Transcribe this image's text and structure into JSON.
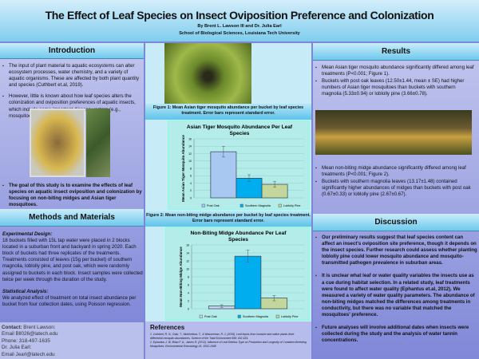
{
  "header": {
    "title": "The Effect of Leaf Species on Insect Oviposition Preference and Colonization",
    "authors": "By Brent L. Lawson III and Dr. Julia Earl",
    "affiliation": "School of Biological Sciences, Louisiana Tech University"
  },
  "introduction": {
    "heading": "Introduction",
    "bullets": [
      "The input of plant material to aquatic ecosystems can alter ecosystem processes, water chemistry, and a variety of aquatic organisms. These are affected by both plant quantity and species (Cuthbert et.al, 2019).",
      "However, little is known about how leaf species alters the colonization and oviposition preferences of aquatic insects, which include some important disease vectors (e.g., mosquitoes)."
    ],
    "goal": "The goal of this study is to examine the effects of leaf species on aquatic insect oviposition and colonization by focusing on non-biting midges and Asian tiger mosquitoes."
  },
  "methods": {
    "heading": "Methods and Materials",
    "design_label": "Experimental Design:",
    "design_text": "18 buckets filled with 15L tap water were placed in 2 blocks located in a suburban front and backyard in spring 2020. Each block of buckets had three replicates of the treatments. Treatments consisted of leaves (15g per bucket) of southern magnolia, loblolly pine, and post oak, which were randomly assigned to buckets in each block. Insect samples were collected twice per week through the duration of the study.",
    "stats_label": "Statistical Analysis:",
    "stats_text": "We analyzed effect of treatment on total insect abundance per bucket from four collection dates, using Poisson regression."
  },
  "contact": {
    "label": "Contact:",
    "lines": [
      "Brent Lawson:",
      "Email Bll026@latech.edu",
      "Phone: 318-497-1635",
      "Dr. Julia Earl:",
      "Email Jearl@latech.edu"
    ]
  },
  "figures": {
    "fig1_caption": "Figure 1: Mean Asian tiger mosquito abundance per bucket by leaf species treatment. Error bars represent standard error.",
    "fig2_caption": "Figure 2: Mean non-biting midge abundance per bucket by leaf species treatment. Error bars represent standard error."
  },
  "chart_data": [
    {
      "type": "bar",
      "title": "Asian Tiger Mosquito Abundance Per Leaf Species",
      "ylabel": "Mean Asian Tiger Mosquito Abundance",
      "xlabel": "",
      "categories": [
        "Post Oak",
        "Southern Magnolia",
        "Loblolly Pine"
      ],
      "values": [
        12.5,
        5.33,
        3.66
      ],
      "errors": [
        1.44,
        0.94,
        0.78
      ],
      "ylim": [
        0,
        16
      ],
      "yticks": [
        "0",
        "2",
        "4",
        "6",
        "8",
        "10",
        "12",
        "14",
        "16"
      ],
      "colors": [
        "#a8c8f2",
        "#00aeef",
        "#c3d69b"
      ],
      "grid": true,
      "legend": "bottom"
    },
    {
      "type": "bar",
      "title": "Non-Biting Midge Abundance Per Leaf Species",
      "ylabel": "Mean Non-Biting Midge Abundance",
      "xlabel": "",
      "categories": [
        "Post Oak",
        "Southern Magnolia",
        "Loblolly Pine"
      ],
      "values": [
        0.67,
        13.17,
        2.67
      ],
      "errors": [
        0.33,
        1.48,
        0.67
      ],
      "ylim": [
        0,
        16
      ],
      "yticks": [
        "0",
        "2",
        "4",
        "6",
        "8",
        "10",
        "12",
        "14",
        "16"
      ],
      "colors": [
        "#c8d3f2",
        "#00aeef",
        "#c3d69b"
      ],
      "grid": true,
      "legend": "bottom"
    }
  ],
  "references": {
    "heading": "References",
    "items": [
      "1. Cuthbert, R. N., Dalu, T., Mutshekwa, T., & Wasserman, R. J. (2019). Leaf inputs from invasive and native plants drive differential mosquito abundances. Science of the Total Environment 698: 432-434.",
      "2. Ephantus J. W, Brian F. A., James R. (2012). Influence of Leaf Detritus Type on Production and Longevity of Container-Breeding Mosquitoes. Environmental Entomology 41: 1062-1068."
    ]
  },
  "results": {
    "heading": "Results",
    "bullets1": [
      "Mean Asian tiger mosquito abundance significantly differed among leaf treatments (P<0.001; Figure 1).",
      "Buckets with post oak leaves (12.50±1.44, mean ± SE) had higher numbers of Asian tiger mosquitoes than buckets with southern magnolia (5.33±0.94) or loblolly pine (3.66±0.78)."
    ],
    "bullets2": [
      "Mean non-biting midge abundance significantly differed among leaf treatments (P<0.001; Figure 2).",
      "Buckets with southern magnolia leaves (13.17±1.48) contained significantly higher abundances of midges than buckets with post oak (0.67±0.33) or loblolly pine (2.67±0.67)."
    ]
  },
  "discussion": {
    "heading": "Discussion",
    "bullets": [
      "Our preliminary results suggest that leaf species content can affect an insect's oviposition site preference, though it depends on the insect species. Further research could assess whether planting loblolly pine could lower mosquito abundance and mosquito-transmitted pathogen prevalence in suburban areas.",
      "It is unclear what leaf or water quality variables the insects use as a cue during habitat selection. In a related study, leaf treatments were found to affect water quality (Ephantus et.al, 2012). We measured a variety of water quality parameters. The abundance of non-biting midges matched the differences among treatments in conductivity, but there was no variable that matched the mosquitoes' preference.",
      "Future analyses will involve additional dates when insects were collected during the study and the analysis of water tannin concentrations."
    ]
  }
}
